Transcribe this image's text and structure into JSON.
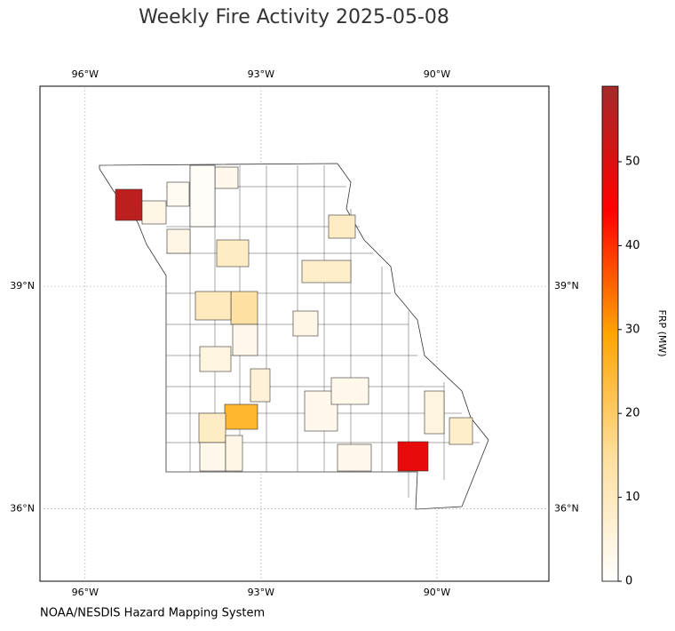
{
  "chart_data": {
    "type": "choropleth",
    "title": "Weekly Fire Activity 2025-05-08",
    "source": "NOAA/NESDIS Hazard Mapping System",
    "xlim": [
      -96.77,
      -88.09
    ],
    "ylim": [
      35.02,
      41.7
    ],
    "xticks": [
      {
        "value": -96,
        "label": "96°W"
      },
      {
        "value": -93,
        "label": "93°W"
      },
      {
        "value": -90,
        "label": "90°W"
      }
    ],
    "yticks": [
      {
        "value": 36,
        "label": "36°N"
      },
      {
        "value": 39,
        "label": "39°N"
      }
    ],
    "grid": true,
    "colorbar": {
      "label": "FRP (MW)",
      "lim": [
        0,
        59
      ],
      "ticks": [
        0,
        10,
        20,
        30,
        40,
        50
      ],
      "colors": [
        "#ffffff",
        "#ffdf9e",
        "#ffa500",
        "#ff0000",
        "#a52a2a"
      ]
    },
    "values": [
      55,
      48,
      25,
      14,
      10,
      9,
      9,
      8,
      9,
      8,
      4,
      4,
      6,
      5,
      5,
      3,
      3,
      3,
      4,
      3,
      4,
      3,
      3,
      2,
      1
    ]
  }
}
